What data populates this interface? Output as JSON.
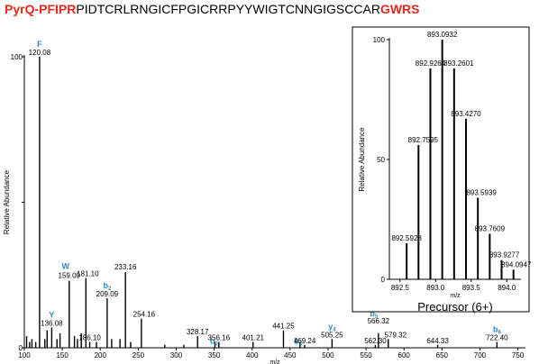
{
  "title": {
    "parts": [
      {
        "text": "PyrQ-PFIPR",
        "color": "#e8291c",
        "bold": true
      },
      {
        "text": "PIDTCRLRNGICFPGICRRPYYWIGTCNNGIGSCCAR",
        "color": "#000000",
        "bold": false
      },
      {
        "text": "GWRS",
        "color": "#e8291c",
        "bold": true
      }
    ]
  },
  "colors": {
    "peaks": "#000000",
    "annotation": "#2a8ab8",
    "title_red": "#e8291c"
  },
  "chart_data": [
    {
      "type": "bar",
      "subtype": "mass-spectrum",
      "xlabel": "m/z",
      "ylabel": "Relative  Abundance",
      "xlim": [
        100,
        760
      ],
      "ylim": [
        0,
        100
      ],
      "xticks": [
        100,
        150,
        200,
        250,
        300,
        350,
        400,
        450,
        500,
        550,
        600,
        650,
        700,
        750
      ],
      "yticks": [
        0,
        50,
        100
      ],
      "ytick_labels": [
        "0",
        "",
        "100"
      ],
      "peaks": [
        {
          "mz": 103,
          "intensity": 4
        },
        {
          "mz": 107,
          "intensity": 2
        },
        {
          "mz": 110,
          "intensity": 3
        },
        {
          "mz": 115,
          "intensity": 2
        },
        {
          "mz": 120.08,
          "intensity": 100,
          "label": "120.08",
          "ion": "F"
        },
        {
          "mz": 127,
          "intensity": 3
        },
        {
          "mz": 130,
          "intensity": 6
        },
        {
          "mz": 136.08,
          "intensity": 7,
          "label": "136.08",
          "ion": "Y"
        },
        {
          "mz": 143,
          "intensity": 3
        },
        {
          "mz": 147,
          "intensity": 5
        },
        {
          "mz": 159.09,
          "intensity": 23,
          "label": "159.09",
          "ion": "W"
        },
        {
          "mz": 166,
          "intensity": 4
        },
        {
          "mz": 170,
          "intensity": 3
        },
        {
          "mz": 175,
          "intensity": 5
        },
        {
          "mz": 181.1,
          "intensity": 24,
          "label": "181.10"
        },
        {
          "mz": 186.1,
          "intensity": 2,
          "label": "186.10"
        },
        {
          "mz": 195,
          "intensity": 2
        },
        {
          "mz": 209.09,
          "intensity": 17,
          "label": "209.09",
          "ion": "b",
          "sub": "2"
        },
        {
          "mz": 215,
          "intensity": 3
        },
        {
          "mz": 226,
          "intensity": 3
        },
        {
          "mz": 233.16,
          "intensity": 26,
          "label": "233.16"
        },
        {
          "mz": 240,
          "intensity": 2
        },
        {
          "mz": 254.16,
          "intensity": 10,
          "label": "254.16"
        },
        {
          "mz": 285,
          "intensity": 1
        },
        {
          "mz": 310,
          "intensity": 1
        },
        {
          "mz": 328.17,
          "intensity": 4,
          "label": "328.17"
        },
        {
          "mz": 351,
          "intensity": 2,
          "ion": "b",
          "sub": "3"
        },
        {
          "mz": 356.16,
          "intensity": 2,
          "label": "356.16"
        },
        {
          "mz": 401.21,
          "intensity": 2,
          "label": "401.21"
        },
        {
          "mz": 441.25,
          "intensity": 6,
          "label": "441.25"
        },
        {
          "mz": 463,
          "intensity": 2,
          "ion": "b",
          "sub": "4"
        },
        {
          "mz": 469.24,
          "intensity": 1,
          "label": "469.24"
        },
        {
          "mz": 505.25,
          "intensity": 3,
          "label": "505.25",
          "ion": "y",
          "sub": "4"
        },
        {
          "mz": 562.3,
          "intensity": 1,
          "label": "562.30"
        },
        {
          "mz": 566.32,
          "intensity": 5,
          "label": "566.32",
          "ion": "b",
          "sub": "5"
        },
        {
          "mz": 579.32,
          "intensity": 3,
          "label": "579.32"
        },
        {
          "mz": 644.33,
          "intensity": 1,
          "label": "644.33"
        },
        {
          "mz": 722.4,
          "intensity": 2,
          "label": "722.40",
          "ion": "b",
          "sub": "6"
        }
      ]
    },
    {
      "type": "bar",
      "subtype": "mass-spectrum-inset",
      "title": "Precursor (6+)",
      "xlabel": "m/z",
      "ylabel": "Relative  Abundance",
      "xlim": [
        892.35,
        894.2
      ],
      "ylim": [
        0,
        100
      ],
      "xticks": [
        892.5,
        893.0,
        893.5,
        894.0
      ],
      "xtick_labels": [
        "892.5",
        "893.0",
        "893.5",
        "894.0"
      ],
      "yticks": [
        0,
        50,
        100
      ],
      "peaks": [
        {
          "mz": 892.5928,
          "intensity": 15,
          "label": "892.5928"
        },
        {
          "mz": 892.7595,
          "intensity": 56,
          "label": "892.7595"
        },
        {
          "mz": 892.9264,
          "intensity": 88,
          "label": "892.9264"
        },
        {
          "mz": 893.0932,
          "intensity": 100,
          "label": "893.0932"
        },
        {
          "mz": 893.2601,
          "intensity": 88,
          "label": "893.2601"
        },
        {
          "mz": 893.427,
          "intensity": 67,
          "label": "893.4270"
        },
        {
          "mz": 893.5939,
          "intensity": 34,
          "label": "893.5939"
        },
        {
          "mz": 893.7609,
          "intensity": 19,
          "label": "893.7609"
        },
        {
          "mz": 893.9277,
          "intensity": 8,
          "label": "893.9277"
        },
        {
          "mz": 894.0947,
          "intensity": 4,
          "label": "894.0947"
        }
      ]
    }
  ]
}
